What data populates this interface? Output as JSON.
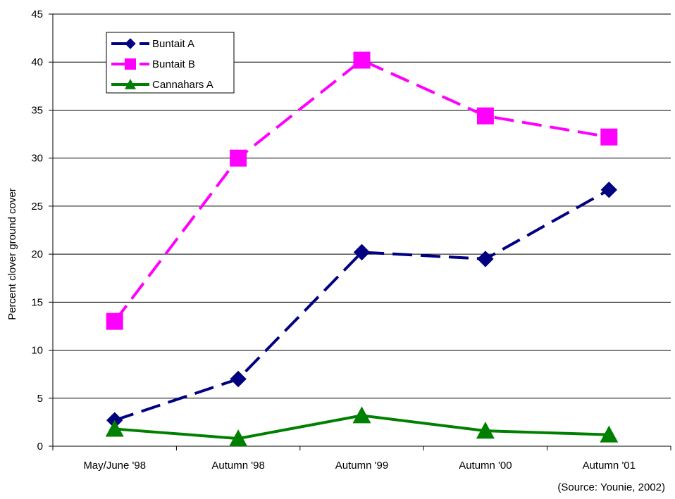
{
  "chart_data": {
    "type": "line",
    "title": "",
    "xlabel": "",
    "ylabel": "Percent clover ground cover",
    "categories": [
      "May/June '98",
      "Autumn '98",
      "Autumn '99",
      "Autumn '00",
      "Autumn '01"
    ],
    "ylim": [
      0,
      45
    ],
    "yticks": [
      "0",
      "5",
      "10",
      "15",
      "20",
      "25",
      "30",
      "35",
      "40",
      "45"
    ],
    "grid": true,
    "legend_position": "top-left",
    "series": [
      {
        "name": "Buntait A",
        "values": [
          2.7,
          7.0,
          20.2,
          19.5,
          26.7
        ],
        "color": "#000080",
        "marker": "diamond",
        "dash": "long-dash"
      },
      {
        "name": "Buntait B",
        "values": [
          13.0,
          30.0,
          40.2,
          34.4,
          32.2
        ],
        "color": "#ff00ff",
        "marker": "square",
        "dash": "long-dash"
      },
      {
        "name": "Cannahars A",
        "values": [
          1.8,
          0.8,
          3.2,
          1.6,
          1.2
        ],
        "color": "#008000",
        "marker": "triangle",
        "dash": "solid"
      }
    ]
  },
  "source_note": "(Source: Younie, 2002)"
}
